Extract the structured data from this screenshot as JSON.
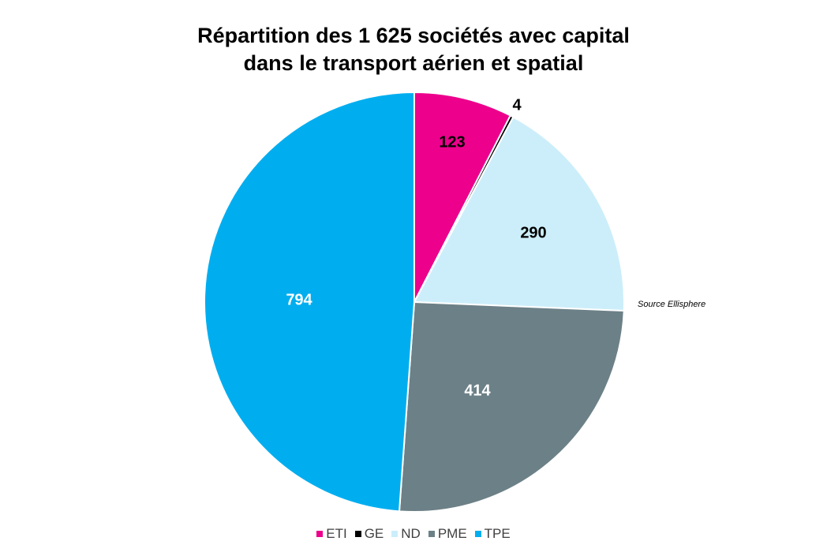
{
  "chart_data": {
    "type": "pie",
    "title": [
      "Répartition des 1 625 sociétés avec capital",
      "dans le transport aérien et spatial"
    ],
    "source": "Source Ellisphere",
    "legend_position": "bottom",
    "slices": [
      {
        "label": "ETI",
        "value": 123,
        "color": "#EC008C",
        "label_color": "#000000"
      },
      {
        "label": "GE",
        "value": 4,
        "color": "#000000",
        "label_color": "#000000"
      },
      {
        "label": "ND",
        "value": 290,
        "color": "#CCEEFA",
        "label_color": "#000000"
      },
      {
        "label": "PME",
        "value": 414,
        "color": "#6C8087",
        "label_color": "#ffffff"
      },
      {
        "label": "TPE",
        "value": 794,
        "color": "#00AEEF",
        "label_color": "#ffffff"
      }
    ]
  }
}
